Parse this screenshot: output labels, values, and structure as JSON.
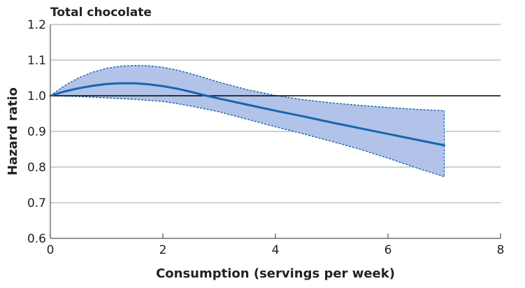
{
  "chart_data": {
    "type": "line",
    "title": "Total chocolate",
    "xlabel": "Consumption (servings per week)",
    "ylabel": "Hazard ratio",
    "xlim": [
      0,
      8
    ],
    "ylim": [
      0.6,
      1.2
    ],
    "x_ticks": [
      "0",
      "2",
      "4",
      "6",
      "8"
    ],
    "y_ticks": [
      "0.6",
      "0.7",
      "0.8",
      "0.9",
      "1.0",
      "1.1",
      "1.2"
    ],
    "grid": true,
    "reference_line": 1.0,
    "series": [
      {
        "x": [
          0,
          0.25,
          0.5,
          0.75,
          1,
          1.25,
          1.5,
          1.75,
          2,
          2.25,
          2.5,
          2.75,
          3,
          3.5,
          4,
          4.5,
          5,
          5.5,
          6,
          6.5,
          7
        ],
        "values": [
          1.0,
          1.012,
          1.021,
          1.028,
          1.033,
          1.035,
          1.035,
          1.032,
          1.027,
          1.02,
          1.011,
          1.001,
          0.992,
          0.975,
          0.958,
          0.942,
          0.925,
          0.909,
          0.893,
          0.877,
          0.861
        ],
        "lower": [
          1.0,
          0.999,
          0.998,
          0.996,
          0.994,
          0.992,
          0.99,
          0.987,
          0.984,
          0.978,
          0.971,
          0.963,
          0.955,
          0.934,
          0.913,
          0.893,
          0.872,
          0.85,
          0.825,
          0.798,
          0.773
        ],
        "upper": [
          1.0,
          1.028,
          1.05,
          1.066,
          1.077,
          1.083,
          1.085,
          1.084,
          1.08,
          1.072,
          1.062,
          1.05,
          1.038,
          1.017,
          1.001,
          0.989,
          0.98,
          0.973,
          0.967,
          0.962,
          0.958
        ]
      }
    ],
    "colors": {
      "line": "#1565b0",
      "band": "#b1c3e8",
      "reference": "#000000"
    }
  }
}
